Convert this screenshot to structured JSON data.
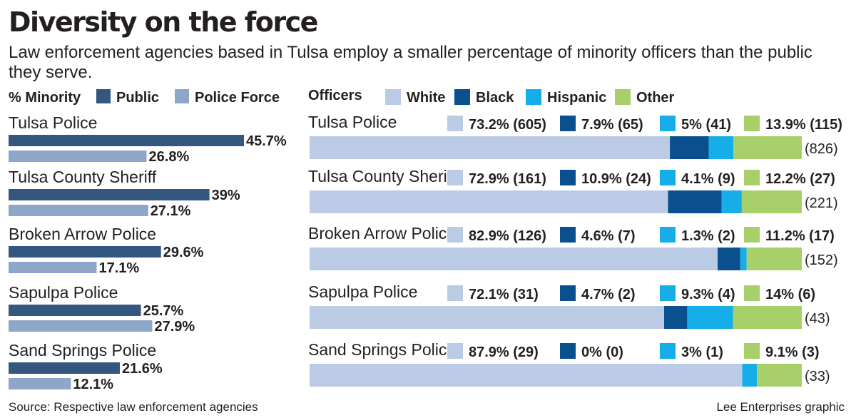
{
  "header": {
    "title": "Diversity on the force",
    "subtitle": "Law enforcement agencies based in Tulsa employ a smaller percentage of minority officers than the public they serve."
  },
  "footer": {
    "source": "Source: Respective law enforcement agencies",
    "credit": "Lee Enterprises graphic"
  },
  "colors": {
    "public": "#34577f",
    "police_force": "#8ea7c8",
    "white": "#bccbe5",
    "black": "#0a4f8e",
    "hispanic": "#16aee8",
    "other": "#a7d06a"
  },
  "chart_data": [
    {
      "type": "bar",
      "orientation": "horizontal",
      "title": "% Minority",
      "categories": [
        "Tulsa Police",
        "Tulsa County Sheriff",
        "Broken Arrow Police",
        "Sapulpa Police",
        "Sand Springs Police"
      ],
      "series": [
        {
          "name": "Public",
          "values": [
            45.7,
            39,
            29.6,
            25.7,
            21.6
          ],
          "labels": [
            "45.7%",
            "39%",
            "29.6%",
            "25.7%",
            "21.6%"
          ]
        },
        {
          "name": "Police Force",
          "values": [
            26.8,
            27.1,
            17.1,
            27.9,
            12.1
          ],
          "labels": [
            "26.8%",
            "27.1%",
            "17.1%",
            "27.9%",
            "12.1%"
          ]
        }
      ],
      "xlim": [
        0,
        50
      ]
    },
    {
      "type": "bar",
      "orientation": "horizontal",
      "stacked": true,
      "normalized": true,
      "title": "Officers",
      "categories": [
        "Tulsa Police",
        "Tulsa County Sheriff",
        "Broken Arrow Police",
        "Sapulpa Police",
        "Sand Springs Police"
      ],
      "totals": [
        "(826)",
        "(221)",
        "(152)",
        "(43)",
        "(33)"
      ],
      "series": [
        {
          "name": "White",
          "values": [
            73.2,
            72.9,
            82.9,
            72.1,
            87.9
          ],
          "labels": [
            "73.2% (605)",
            "72.9% (161)",
            "82.9% (126)",
            "72.1% (31)",
            "87.9% (29)"
          ]
        },
        {
          "name": "Black",
          "values": [
            7.9,
            10.9,
            4.6,
            4.7,
            0
          ],
          "labels": [
            "7.9% (65)",
            "10.9% (24)",
            "4.6% (7)",
            "4.7% (2)",
            "0% (0)"
          ]
        },
        {
          "name": "Hispanic",
          "values": [
            5,
            4.1,
            1.3,
            9.3,
            3
          ],
          "labels": [
            "5% (41)",
            "4.1% (9)",
            "1.3% (2)",
            "9.3% (4)",
            "3% (1)"
          ]
        },
        {
          "name": "Other",
          "values": [
            13.9,
            12.2,
            11.2,
            14,
            9.1
          ],
          "labels": [
            "13.9% (115)",
            "12.2% (27)",
            "11.2% (17)",
            "14% (6)",
            "9.1% (3)"
          ]
        }
      ]
    }
  ]
}
